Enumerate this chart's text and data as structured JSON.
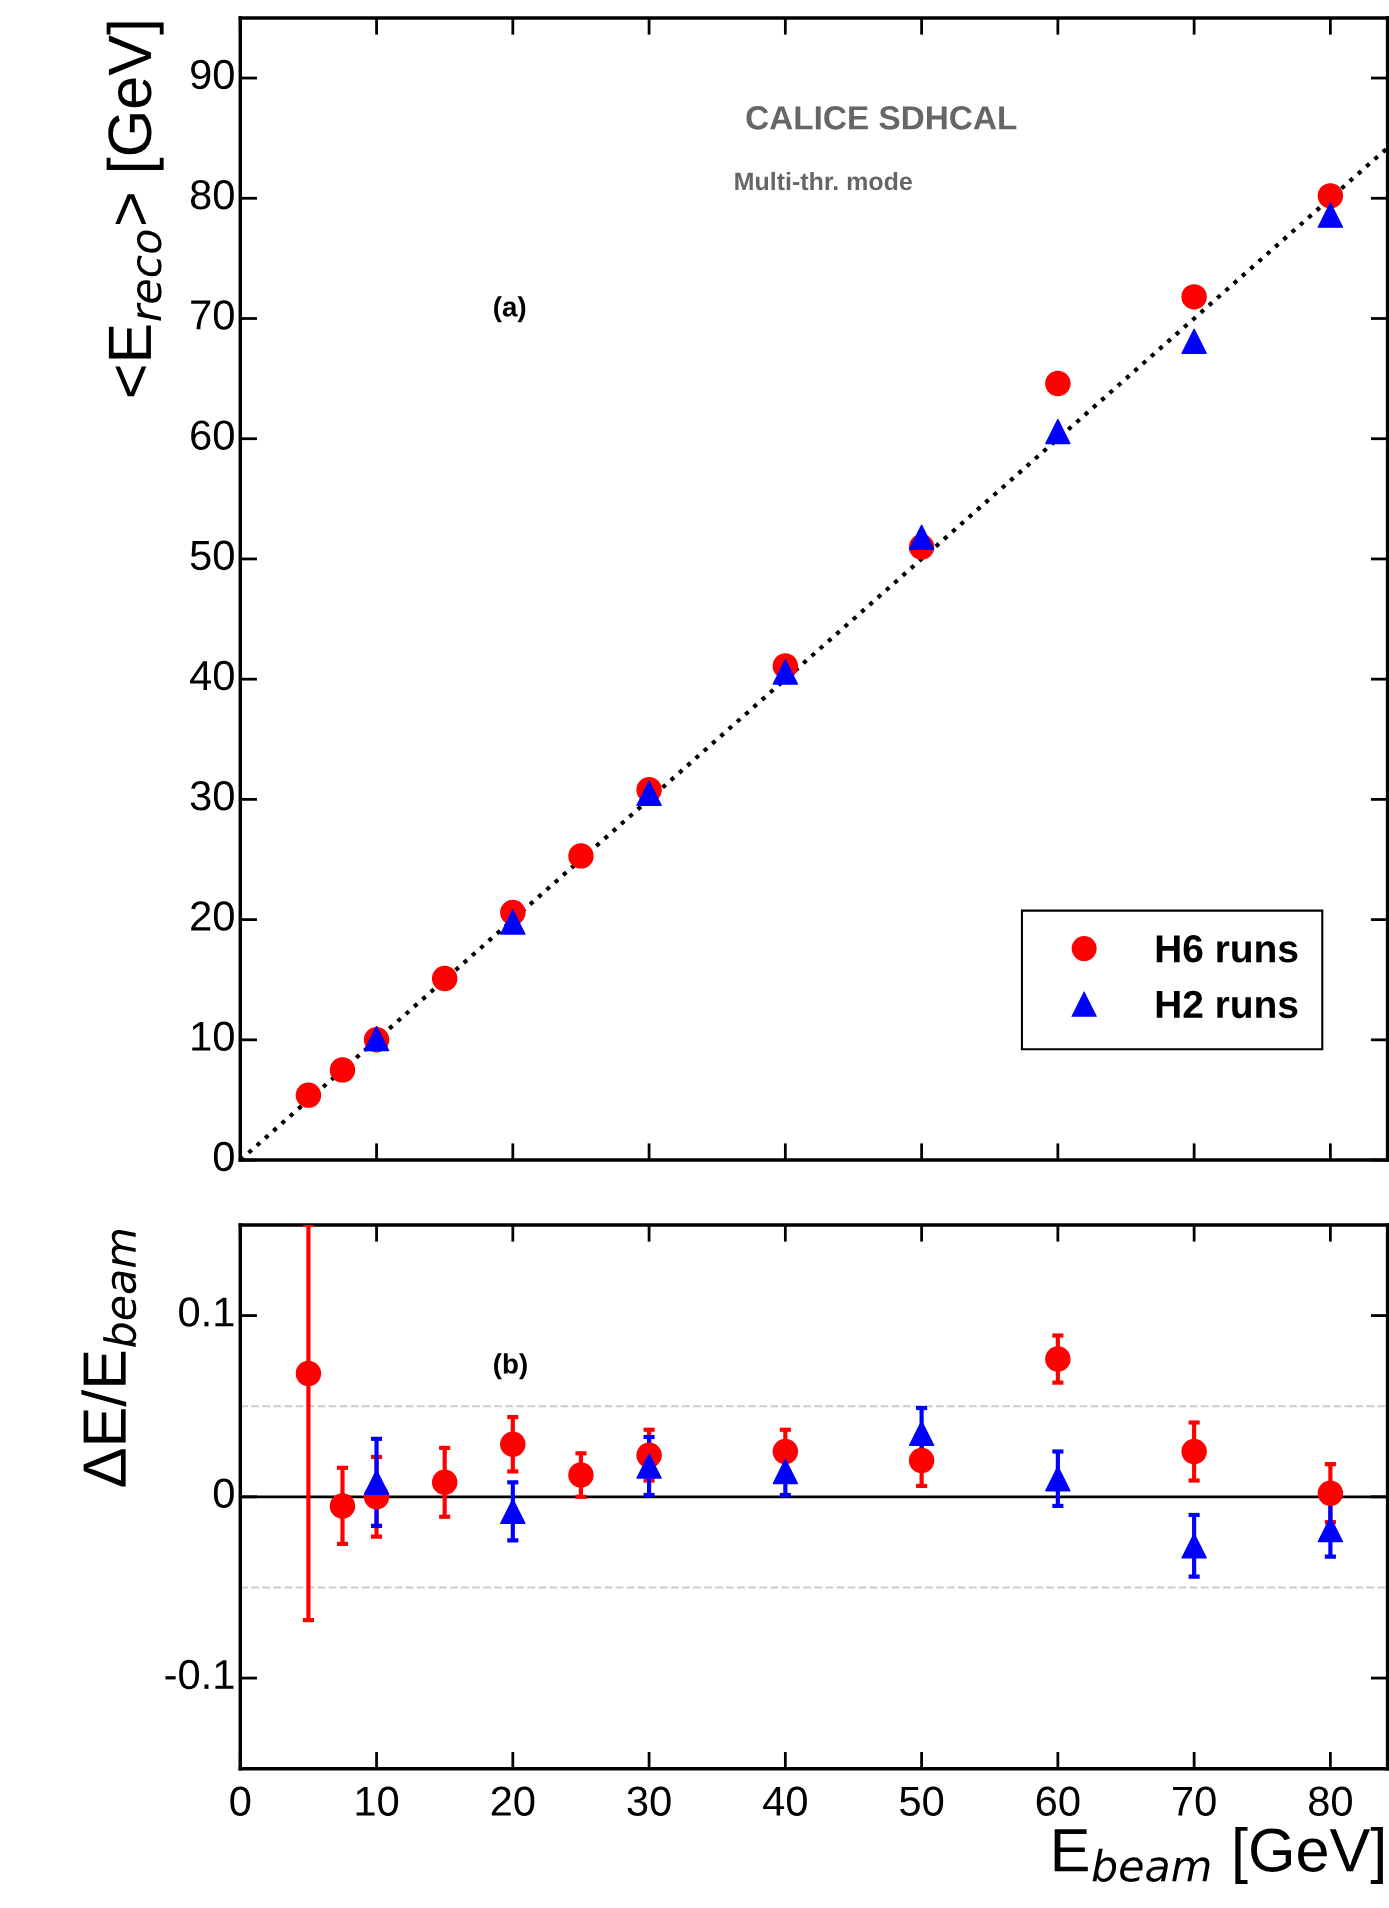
{
  "chart_data": [
    {
      "type": "scatter",
      "ylabel": "<E$_{reco}$> [GeV]",
      "xlim": [
        0,
        84.2
      ],
      "ylim": [
        0,
        95
      ],
      "xticks": [
        0,
        10,
        20,
        30,
        40,
        50,
        60,
        70,
        80
      ],
      "yticks": [
        0,
        10,
        20,
        30,
        40,
        50,
        60,
        70,
        80,
        90
      ],
      "tick_labels": "y",
      "legend": "bottom right",
      "grid": false,
      "annotations": [
        "CALICE SDHCAL",
        "Multi-thr. mode",
        "(a)"
      ],
      "series": [
        {
          "name": "H6 runs",
          "color": "#ff0000",
          "marker": "circle",
          "x": [
            5,
            7.5,
            10,
            15,
            20,
            25,
            30,
            40,
            50,
            60,
            70,
            80
          ],
          "values": [
            5.4,
            7.5,
            10.0,
            15.1,
            20.6,
            25.3,
            30.8,
            41.1,
            51.0,
            64.6,
            71.8,
            80.2
          ]
        },
        {
          "name": "H2 runs",
          "color": "#0000ff",
          "marker": "triangle",
          "x": [
            10,
            20,
            30,
            40,
            50,
            60,
            70,
            80
          ],
          "values": [
            10.1,
            19.8,
            30.5,
            40.6,
            51.8,
            60.6,
            68.1,
            78.6
          ]
        },
        {
          "type": "line",
          "color": "#000000",
          "marker": "none",
          "line_style": "dotted",
          "x": [
            0,
            84.2
          ],
          "values": [
            0,
            84.2
          ]
        }
      ]
    },
    {
      "type": "scatter",
      "xlabel": "E$_{beam}$ [GeV]",
      "ylabel": "ΔE/E$_{beam}$",
      "xlim": [
        0,
        84.2
      ],
      "ylim": [
        -0.15,
        0.15
      ],
      "xticks": [
        0,
        10,
        20,
        30,
        40,
        50,
        60,
        70,
        80
      ],
      "yticks": [
        {
          "value": -0.1,
          "label": "-0.1"
        },
        0,
        0.1
      ],
      "grid": false,
      "annotations": [
        "(b)"
      ],
      "ref_lines": [
        {
          "axis": "y",
          "value": 0,
          "color": "#000000",
          "line_style": "solid"
        },
        {
          "axis": "y",
          "value": 0.05,
          "color": "#cccccc",
          "line_style": "dashed"
        },
        {
          "axis": "y",
          "value": -0.05,
          "color": "#cccccc",
          "line_style": "dashed"
        }
      ],
      "series": [
        {
          "color": "#ff0000",
          "marker": "circle",
          "x": [
            5,
            7.5,
            10,
            15,
            20,
            25,
            30,
            40,
            50,
            60,
            70,
            80
          ],
          "values": [
            0.068,
            -0.005,
            0.0,
            0.008,
            0.029,
            0.012,
            0.023,
            0.025,
            0.02,
            0.076,
            0.025,
            0.002
          ],
          "errors": [
            [
              -0.068,
              0.15
            ],
            0.021,
            0.022,
            0.019,
            0.015,
            0.012,
            0.014,
            0.012,
            0.014,
            0.013,
            0.016,
            0.016
          ]
        },
        {
          "color": "#0000ff",
          "marker": "triangle",
          "x": [
            10,
            20,
            30,
            40,
            50,
            60,
            70,
            80
          ],
          "values": [
            0.008,
            -0.008,
            0.017,
            0.014,
            0.035,
            0.01,
            -0.027,
            -0.018
          ],
          "errors": [
            0.024,
            0.016,
            0.016,
            0.013,
            0.014,
            0.015,
            0.017,
            0.015
          ]
        }
      ]
    }
  ]
}
